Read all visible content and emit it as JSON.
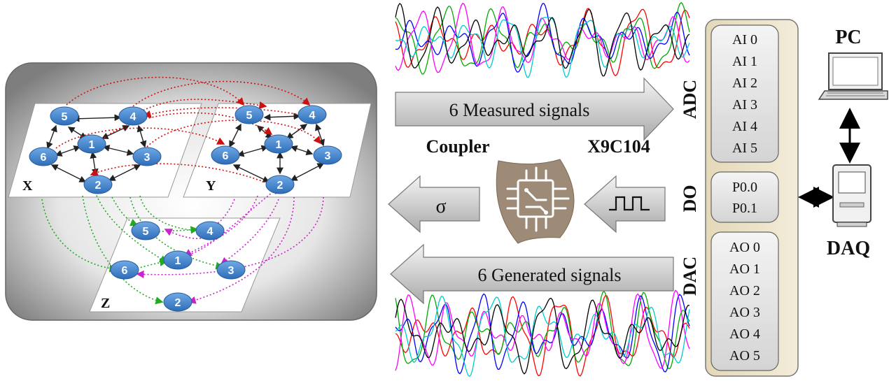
{
  "network": {
    "layers": [
      {
        "id": "X",
        "label": "X"
      },
      {
        "id": "Y",
        "label": "Y"
      },
      {
        "id": "Z",
        "label": "Z"
      }
    ],
    "node_labels": [
      "1",
      "2",
      "3",
      "4",
      "5",
      "6"
    ]
  },
  "arrows": {
    "measured": "6 Measured signals",
    "generated": "6 Generated signals",
    "sigma": "σ"
  },
  "coupler": {
    "title": "Coupler",
    "chip": "X9C104"
  },
  "daq_panel": {
    "adc_label": "ADC",
    "do_label": "DO",
    "dac_label": "DAC",
    "ai_channels": [
      "AI 0",
      "AI 1",
      "AI 2",
      "AI 3",
      "AI 4",
      "AI 5"
    ],
    "do_channels": [
      "P0.0",
      "P0.1"
    ],
    "ao_channels": [
      "AO 0",
      "AO 1",
      "AO 2",
      "AO 3",
      "AO 4",
      "AO 5"
    ]
  },
  "devices": {
    "pc": "PC",
    "daq": "DAQ"
  },
  "colors": {
    "node": "#4a8fd6",
    "xy_link": "#cc1111",
    "xz_link": "#22aa22",
    "yz_link": "#cc22cc",
    "wave_colors": [
      "#ff0000",
      "#00aa00",
      "#0000ff",
      "#ff00ff",
      "#00cccc",
      "#000000"
    ]
  }
}
